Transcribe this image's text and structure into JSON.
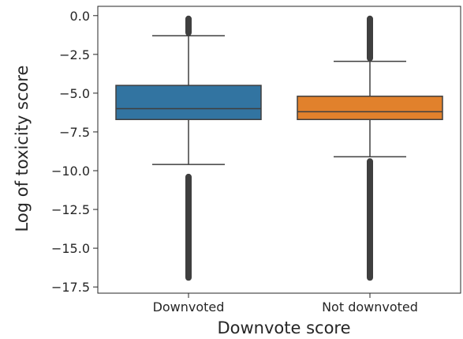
{
  "chart_data": {
    "type": "box",
    "xlabel": "Downvote score",
    "ylabel": "Log of toxicity score",
    "ylim": [
      -17.9,
      0.6
    ],
    "yticks": [
      0.0,
      -2.5,
      -5.0,
      -7.5,
      -10.0,
      -12.5,
      -15.0,
      -17.5
    ],
    "ytick_labels": [
      "0.0",
      "−2.5",
      "−5.0",
      "−7.5",
      "−10.0",
      "−12.5",
      "−15.0",
      "−17.5"
    ],
    "categories": [
      "Downvoted",
      "Not downvoted"
    ],
    "boxes": [
      {
        "category": "Downvoted",
        "color": "#3274a1",
        "whisker_low": -9.6,
        "q1": -6.7,
        "median": -6.0,
        "q3": -4.5,
        "whisker_high": -1.3,
        "outliers_high": [
          -1.3,
          -0.0
        ],
        "outliers_low": [
          -10.2,
          -12.8,
          -13.2,
          -17.1
        ]
      },
      {
        "category": "Not downvoted",
        "color": "#e1812c",
        "whisker_low": -9.1,
        "q1": -6.7,
        "median": -6.2,
        "q3": -5.2,
        "whisker_high": -2.95,
        "outliers_high": [
          -2.95,
          -0.0
        ],
        "outliers_low": [
          -9.2,
          -9.6,
          -10.2,
          -12.6,
          -13.1,
          -17.1
        ]
      }
    ],
    "grid": false
  }
}
